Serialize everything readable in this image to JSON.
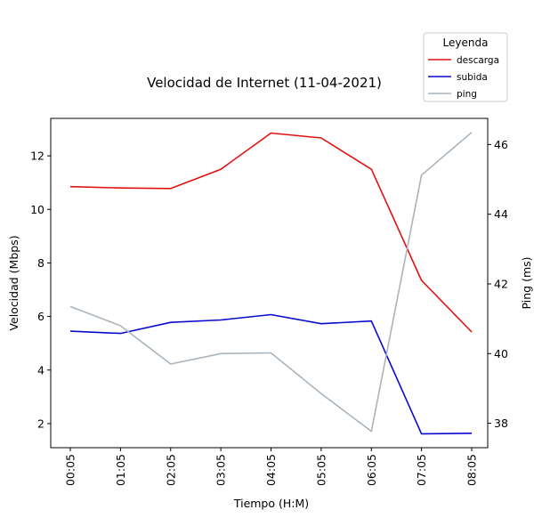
{
  "chart_data": {
    "type": "line",
    "title": "Velocidad de Internet (11-04-2021)",
    "xlabel": "Tiempo (H:M)",
    "ylabel": "Velocidad (Mbps)",
    "y2label": "Ping (ms)",
    "categories": [
      "00:05",
      "01:05",
      "02:05",
      "03:05",
      "04:05",
      "05:05",
      "06:05",
      "07:05",
      "08:05"
    ],
    "ylim": [
      1.1,
      13.4
    ],
    "yticks": [
      2,
      4,
      6,
      8,
      10,
      12
    ],
    "y2lim": [
      37.3,
      46.75
    ],
    "y2ticks": [
      38,
      40,
      42,
      44,
      46
    ],
    "legend": {
      "title": "Leyenda",
      "placement": "top-right (outside)"
    },
    "series": [
      {
        "name": "descarga",
        "axis": "left",
        "color": "#e31010",
        "values": [
          10.85,
          10.8,
          10.78,
          11.5,
          12.85,
          12.67,
          11.5,
          7.35,
          5.42
        ]
      },
      {
        "name": "subida",
        "axis": "left",
        "color": "#0a0acf",
        "values": [
          5.45,
          5.37,
          5.78,
          5.87,
          6.07,
          5.73,
          5.83,
          1.62,
          1.64
        ]
      },
      {
        "name": "ping",
        "axis": "right",
        "color": "#aab4bc",
        "values": [
          41.35,
          40.8,
          39.7,
          40.0,
          40.02,
          38.85,
          37.77,
          45.12,
          46.35
        ]
      }
    ]
  }
}
